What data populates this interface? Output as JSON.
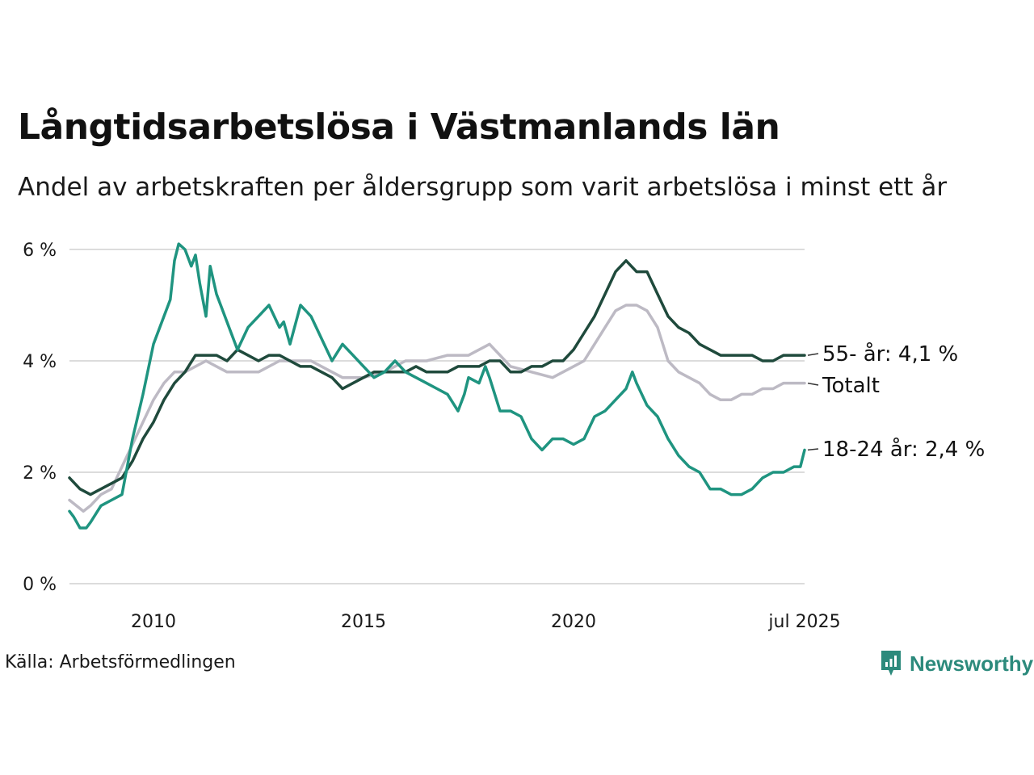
{
  "header": {
    "title": "Långtidsarbetslösa i Västmanlands län",
    "subtitle": "Andel av arbetskraften per åldersgrupp som varit arbetslösa i minst ett år"
  },
  "footer": {
    "source": "Källa: Arbetsförmedlingen",
    "brand": "Newsworthy"
  },
  "chart_data": {
    "type": "line",
    "title": "Långtidsarbetslösa i Västmanlands län",
    "subtitle": "Andel av arbetskraften per åldersgrupp som varit arbetslösa i minst ett år",
    "xlabel": "",
    "ylabel": "",
    "x_range": [
      2008.0,
      2025.5
    ],
    "ylim": [
      0,
      6.2
    ],
    "y_ticks": [
      0,
      2,
      4,
      6
    ],
    "y_tick_labels": [
      "0 %",
      "2 %",
      "4 %",
      "6 %"
    ],
    "x_ticks": [
      2010,
      2015,
      2020,
      2025.5
    ],
    "x_tick_labels": [
      "2010",
      "2015",
      "2020",
      "jul 2025"
    ],
    "grid": true,
    "legend": "end-labels",
    "series": [
      {
        "name": "Totalt",
        "end_label": "Totalt",
        "color": "#bdbac4",
        "x": [
          2008.0,
          2008.33,
          2008.5,
          2008.75,
          2009.0,
          2009.25,
          2009.5,
          2009.75,
          2010.0,
          2010.25,
          2010.5,
          2010.75,
          2011.0,
          2011.25,
          2011.5,
          2011.75,
          2012.0,
          2012.5,
          2013.0,
          2013.5,
          2013.75,
          2014.0,
          2014.25,
          2014.5,
          2015.0,
          2015.5,
          2016.0,
          2016.5,
          2017.0,
          2017.5,
          2017.75,
          2018.0,
          2018.25,
          2018.5,
          2019.0,
          2019.5,
          2020.0,
          2020.25,
          2020.5,
          2020.75,
          2021.0,
          2021.25,
          2021.5,
          2021.75,
          2022.0,
          2022.25,
          2022.5,
          2022.75,
          2023.0,
          2023.25,
          2023.5,
          2023.75,
          2024.0,
          2024.25,
          2024.5,
          2024.75,
          2025.0,
          2025.25,
          2025.5
        ],
        "y": [
          1.5,
          1.3,
          1.4,
          1.6,
          1.7,
          2.1,
          2.5,
          2.9,
          3.3,
          3.6,
          3.8,
          3.8,
          3.9,
          4.0,
          3.9,
          3.8,
          3.8,
          3.8,
          4.0,
          4.0,
          4.0,
          3.9,
          3.8,
          3.7,
          3.7,
          3.8,
          4.0,
          4.0,
          4.1,
          4.1,
          4.2,
          4.3,
          4.1,
          3.9,
          3.8,
          3.7,
          3.9,
          4.0,
          4.3,
          4.6,
          4.9,
          5.0,
          5.0,
          4.9,
          4.6,
          4.0,
          3.8,
          3.7,
          3.6,
          3.4,
          3.3,
          3.3,
          3.4,
          3.4,
          3.5,
          3.5,
          3.6,
          3.6,
          3.6
        ]
      },
      {
        "name": "55- år",
        "end_label": "55- år: 4,1 %",
        "color": "#1f4a3c",
        "x": [
          2008.0,
          2008.25,
          2008.5,
          2008.75,
          2009.0,
          2009.25,
          2009.5,
          2009.75,
          2010.0,
          2010.25,
          2010.5,
          2010.75,
          2011.0,
          2011.25,
          2011.5,
          2011.75,
          2012.0,
          2012.25,
          2012.5,
          2012.75,
          2013.0,
          2013.25,
          2013.5,
          2013.75,
          2014.0,
          2014.25,
          2014.5,
          2014.75,
          2015.0,
          2015.25,
          2015.5,
          2015.75,
          2016.0,
          2016.25,
          2016.5,
          2016.75,
          2017.0,
          2017.25,
          2017.5,
          2017.75,
          2018.0,
          2018.25,
          2018.5,
          2018.75,
          2019.0,
          2019.25,
          2019.5,
          2019.75,
          2020.0,
          2020.25,
          2020.5,
          2020.75,
          2021.0,
          2021.25,
          2021.5,
          2021.75,
          2022.0,
          2022.25,
          2022.5,
          2022.75,
          2023.0,
          2023.25,
          2023.5,
          2023.75,
          2024.0,
          2024.25,
          2024.5,
          2024.75,
          2025.0,
          2025.25,
          2025.5
        ],
        "y": [
          1.9,
          1.7,
          1.6,
          1.7,
          1.8,
          1.9,
          2.2,
          2.6,
          2.9,
          3.3,
          3.6,
          3.8,
          4.1,
          4.1,
          4.1,
          4.0,
          4.2,
          4.1,
          4.0,
          4.1,
          4.1,
          4.0,
          3.9,
          3.9,
          3.8,
          3.7,
          3.5,
          3.6,
          3.7,
          3.8,
          3.8,
          3.8,
          3.8,
          3.9,
          3.8,
          3.8,
          3.8,
          3.9,
          3.9,
          3.9,
          4.0,
          4.0,
          3.8,
          3.8,
          3.9,
          3.9,
          4.0,
          4.0,
          4.2,
          4.5,
          4.8,
          5.2,
          5.6,
          5.8,
          5.6,
          5.6,
          5.2,
          4.8,
          4.6,
          4.5,
          4.3,
          4.2,
          4.1,
          4.1,
          4.1,
          4.1,
          4.0,
          4.0,
          4.1,
          4.1,
          4.1
        ]
      },
      {
        "name": "18-24 år",
        "end_label": "18-24 år: 2,4 %",
        "color": "#1f9480",
        "x": [
          2008.0,
          2008.1,
          2008.25,
          2008.4,
          2008.5,
          2008.75,
          2009.0,
          2009.25,
          2009.5,
          2009.75,
          2010.0,
          2010.25,
          2010.4,
          2010.5,
          2010.6,
          2010.75,
          2010.85,
          2010.9,
          2011.0,
          2011.1,
          2011.25,
          2011.35,
          2011.5,
          2011.75,
          2012.0,
          2012.25,
          2012.5,
          2012.75,
          2013.0,
          2013.1,
          2013.25,
          2013.5,
          2013.75,
          2014.0,
          2014.25,
          2014.5,
          2014.75,
          2015.0,
          2015.25,
          2015.5,
          2015.75,
          2016.0,
          2016.25,
          2016.5,
          2016.75,
          2017.0,
          2017.25,
          2017.4,
          2017.5,
          2017.75,
          2017.9,
          2018.0,
          2018.25,
          2018.5,
          2018.75,
          2019.0,
          2019.25,
          2019.5,
          2019.75,
          2020.0,
          2020.25,
          2020.5,
          2020.75,
          2021.0,
          2021.25,
          2021.4,
          2021.5,
          2021.75,
          2022.0,
          2022.25,
          2022.5,
          2022.75,
          2023.0,
          2023.25,
          2023.5,
          2023.75,
          2024.0,
          2024.25,
          2024.5,
          2024.75,
          2025.0,
          2025.25,
          2025.4,
          2025.5
        ],
        "y": [
          1.3,
          1.2,
          1.0,
          1.0,
          1.1,
          1.4,
          1.5,
          1.6,
          2.6,
          3.4,
          4.3,
          4.8,
          5.1,
          5.8,
          6.1,
          6.0,
          5.8,
          5.7,
          5.9,
          5.4,
          4.8,
          5.7,
          5.2,
          4.7,
          4.2,
          4.6,
          4.8,
          5.0,
          4.6,
          4.7,
          4.3,
          5.0,
          4.8,
          4.4,
          4.0,
          4.3,
          4.1,
          3.9,
          3.7,
          3.8,
          4.0,
          3.8,
          3.7,
          3.6,
          3.5,
          3.4,
          3.1,
          3.4,
          3.7,
          3.6,
          3.9,
          3.7,
          3.1,
          3.1,
          3.0,
          2.6,
          2.4,
          2.6,
          2.6,
          2.5,
          2.6,
          3.0,
          3.1,
          3.3,
          3.5,
          3.8,
          3.6,
          3.2,
          3.0,
          2.6,
          2.3,
          2.1,
          2.0,
          1.7,
          1.7,
          1.6,
          1.6,
          1.7,
          1.9,
          2.0,
          2.0,
          2.1,
          2.1,
          2.4
        ]
      }
    ]
  }
}
